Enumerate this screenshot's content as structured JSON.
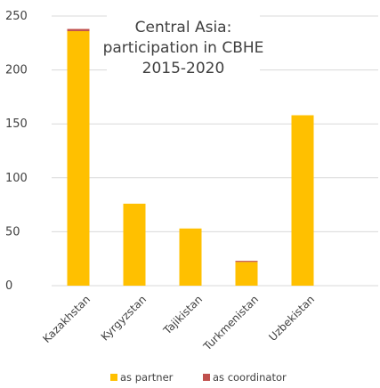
{
  "chart_data": {
    "type": "bar",
    "stacked": true,
    "title_lines": [
      "Central Asia:",
      "participation in CBHE",
      "2015-2020"
    ],
    "categories": [
      "Kazakhstan",
      "Kyrgyzstan",
      "Tajikistan",
      "Turkmenistan",
      "Uzbekistan"
    ],
    "series": [
      {
        "name": "as partner",
        "color": "#FFC000",
        "values": [
          236,
          76,
          53,
          22,
          158
        ]
      },
      {
        "name": "as coordinator",
        "color": "#C0504D",
        "values": [
          2,
          0,
          0,
          1,
          0
        ]
      }
    ],
    "ylim": [
      0,
      250
    ],
    "yticks": [
      0,
      50,
      100,
      150,
      200,
      250
    ],
    "grid": true,
    "legend_position": "bottom"
  }
}
